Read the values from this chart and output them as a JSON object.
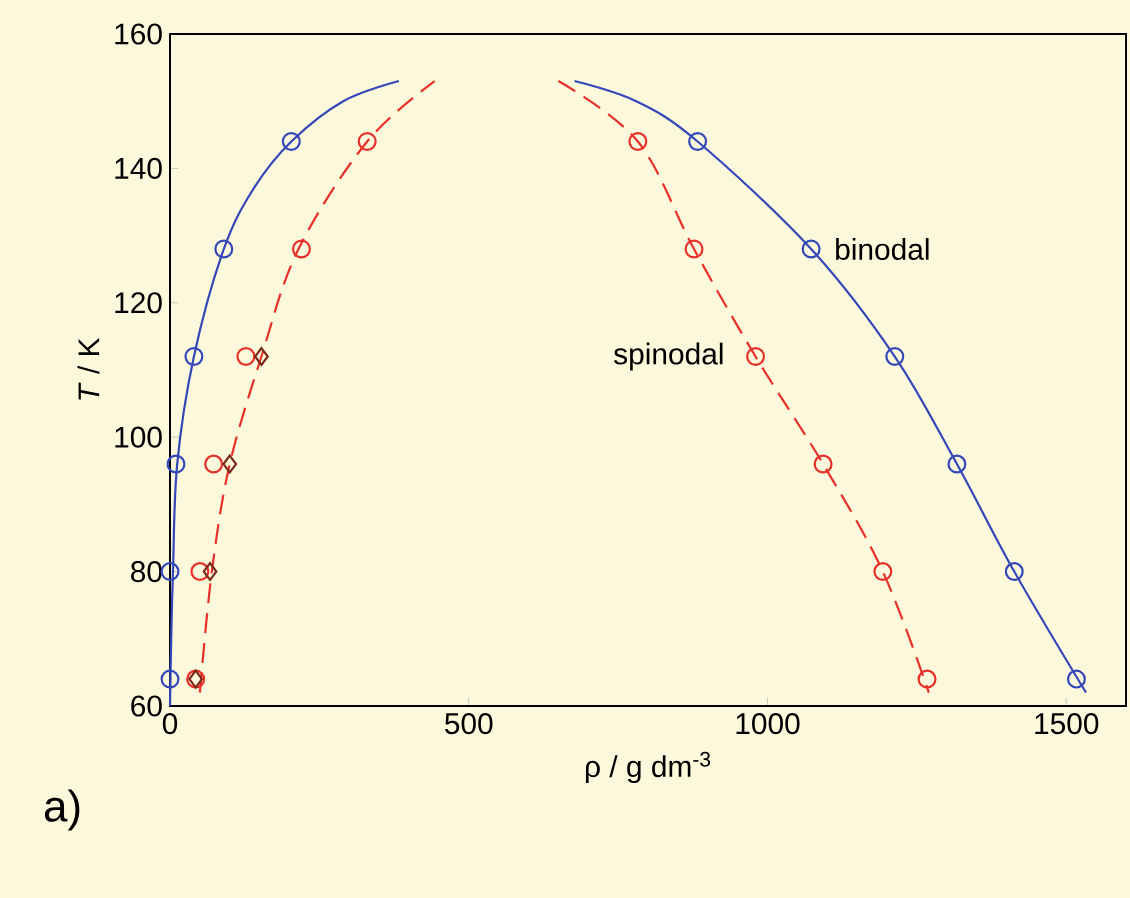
{
  "chart_data": {
    "type": "scatter",
    "xlabel": "ρ / g dm$^{-3}$",
    "ylabel": "*T* / K",
    "xlim": [
      0,
      1600
    ],
    "ylim": [
      60,
      160
    ],
    "xticks": [
      0,
      500,
      1000,
      1500
    ],
    "yticks": [
      60,
      80,
      100,
      120,
      140,
      160
    ],
    "grid": false,
    "legend": false,
    "series": [
      {
        "type": "line",
        "name": "binodal",
        "color": "#3347b8",
        "marker": "none",
        "line_style": "solid",
        "x": [
          0,
          2,
          5,
          12,
          40,
          90,
          140,
          203,
          290,
          383,
          500,
          677,
          780,
          883,
          1073,
          1213,
          1317,
          1413,
          1533
        ],
        "values": [
          60,
          70,
          80,
          96,
          112,
          128,
          137,
          144,
          150,
          153,
          null,
          153,
          150,
          144,
          128,
          112,
          96,
          80,
          62
        ]
      },
      {
        "type": "line",
        "name": "spinodal",
        "color": "#e8302a",
        "marker": "none",
        "line_style": "dashed",
        "x": [
          50,
          70,
          100,
          153,
          215,
          330,
          443,
          550,
          650,
          783,
          877,
          980,
          1093,
          1193,
          1270
        ],
        "values": [
          62,
          80,
          96,
          112,
          128,
          144,
          153,
          null,
          153,
          144,
          128,
          112,
          96,
          80,
          62
        ]
      },
      {
        "color": "#3347b8",
        "marker": "circle",
        "x": [
          0,
          0,
          10,
          40,
          90,
          203,
          883,
          1073,
          1213,
          1317,
          1413,
          1517
        ],
        "values": [
          64,
          80,
          96,
          112,
          128,
          144,
          144,
          128,
          112,
          96,
          80,
          64
        ]
      },
      {
        "color": "#e8302a",
        "marker": "circle",
        "x": [
          43,
          50,
          73,
          127,
          220,
          330,
          783,
          877,
          980,
          1093,
          1193,
          1267
        ],
        "values": [
          64,
          80,
          96,
          112,
          128,
          144,
          144,
          128,
          112,
          96,
          80,
          64
        ]
      },
      {
        "color": "#7a2a1a",
        "marker": "diamond",
        "x": [
          43,
          67,
          100,
          153
        ],
        "values": [
          64,
          80,
          96,
          112
        ]
      }
    ],
    "annotations": [
      "a)"
    ]
  }
}
